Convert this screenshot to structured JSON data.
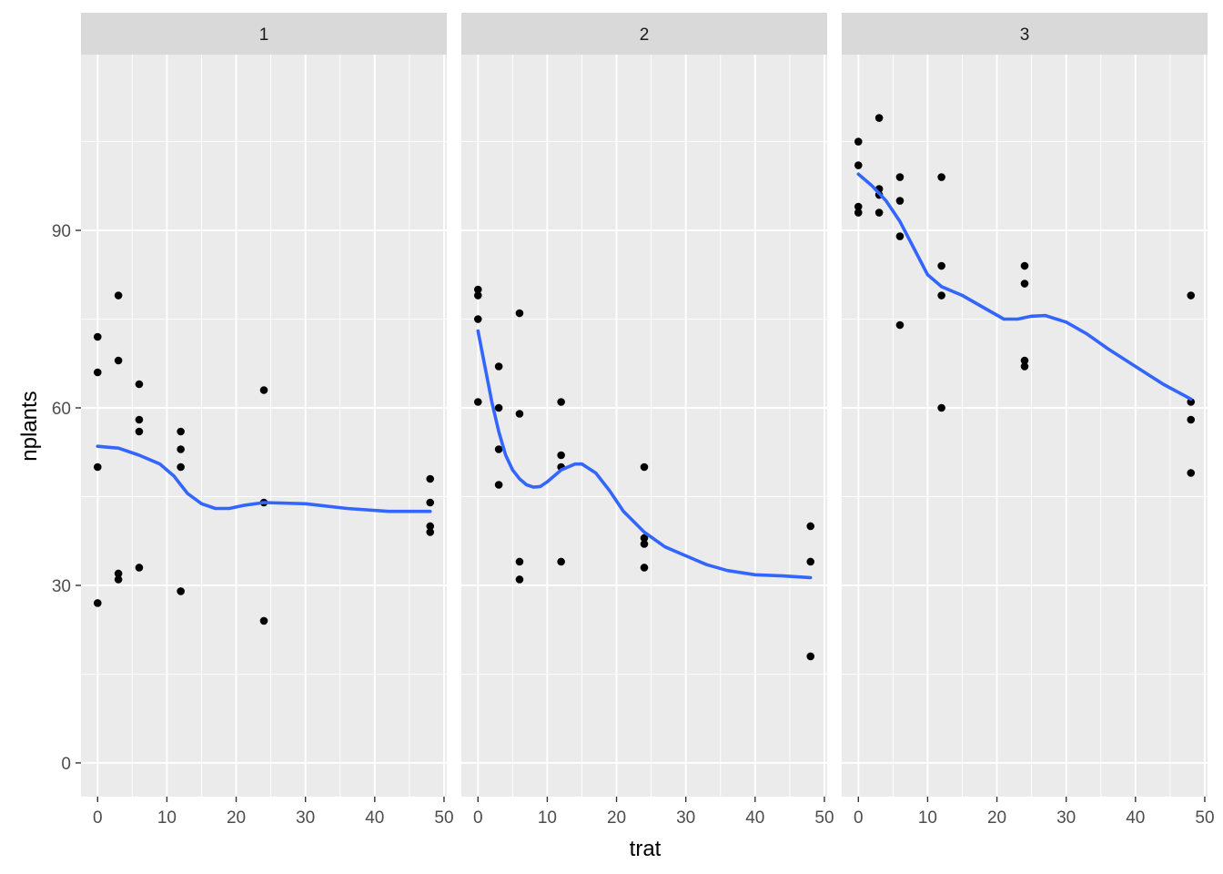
{
  "chart_data": {
    "type": "scatter",
    "facet_by": "panel",
    "xlabel": "trat",
    "ylabel": "nplants",
    "xlim": [
      -2.4,
      50.4
    ],
    "ylim": [
      -5.7,
      119.7
    ],
    "x_ticks": [
      0,
      10,
      20,
      30,
      40,
      50
    ],
    "y_ticks": [
      0,
      30,
      60,
      90
    ],
    "grid": true,
    "colors": {
      "panel_bg": "#ebebeb",
      "strip_bg": "#d9d9d9",
      "grid": "#ffffff",
      "point": "#000000",
      "smooth": "#3366ff"
    },
    "panels": [
      {
        "label": "1",
        "points": [
          [
            0,
            72
          ],
          [
            0,
            66
          ],
          [
            0,
            50
          ],
          [
            0,
            27
          ],
          [
            3,
            79
          ],
          [
            3,
            68
          ],
          [
            3,
            32
          ],
          [
            3,
            31
          ],
          [
            6,
            64
          ],
          [
            6,
            58
          ],
          [
            6,
            56
          ],
          [
            6,
            33
          ],
          [
            12,
            56
          ],
          [
            12,
            53
          ],
          [
            12,
            50
          ],
          [
            12,
            29
          ],
          [
            24,
            63
          ],
          [
            24,
            44
          ],
          [
            24,
            24
          ],
          [
            48,
            48
          ],
          [
            48,
            44
          ],
          [
            48,
            40
          ],
          [
            48,
            39
          ]
        ],
        "smooth": [
          [
            0,
            53.5
          ],
          [
            3,
            53.2
          ],
          [
            6,
            52
          ],
          [
            9,
            50.5
          ],
          [
            11,
            48.5
          ],
          [
            12,
            47
          ],
          [
            13,
            45.5
          ],
          [
            15,
            43.8
          ],
          [
            17,
            43
          ],
          [
            19,
            43
          ],
          [
            21,
            43.5
          ],
          [
            24,
            44
          ],
          [
            30,
            43.8
          ],
          [
            36,
            43
          ],
          [
            42,
            42.5
          ],
          [
            48,
            42.5
          ]
        ]
      },
      {
        "label": "2",
        "points": [
          [
            0,
            80
          ],
          [
            0,
            79
          ],
          [
            0,
            75
          ],
          [
            0,
            61
          ],
          [
            3,
            67
          ],
          [
            3,
            60
          ],
          [
            3,
            53
          ],
          [
            3,
            47
          ],
          [
            6,
            76
          ],
          [
            6,
            59
          ],
          [
            6,
            34
          ],
          [
            6,
            31
          ],
          [
            12,
            61
          ],
          [
            12,
            52
          ],
          [
            12,
            50
          ],
          [
            12,
            34
          ],
          [
            24,
            50
          ],
          [
            24,
            38
          ],
          [
            24,
            37
          ],
          [
            24,
            33
          ],
          [
            48,
            40
          ],
          [
            48,
            34
          ],
          [
            48,
            18
          ]
        ],
        "smooth": [
          [
            0,
            73
          ],
          [
            1,
            67
          ],
          [
            2,
            61
          ],
          [
            3,
            56
          ],
          [
            4,
            52
          ],
          [
            5,
            49.5
          ],
          [
            6,
            48
          ],
          [
            7,
            47
          ],
          [
            8,
            46.6
          ],
          [
            9,
            46.7
          ],
          [
            10,
            47.5
          ],
          [
            12,
            49.5
          ],
          [
            14,
            50.5
          ],
          [
            15,
            50.5
          ],
          [
            17,
            49
          ],
          [
            19,
            46
          ],
          [
            21,
            42.5
          ],
          [
            24,
            39
          ],
          [
            27,
            36.5
          ],
          [
            30,
            35
          ],
          [
            33,
            33.5
          ],
          [
            36,
            32.5
          ],
          [
            40,
            31.8
          ],
          [
            44,
            31.6
          ],
          [
            48,
            31.3
          ]
        ]
      },
      {
        "label": "3",
        "points": [
          [
            0,
            105
          ],
          [
            0,
            101
          ],
          [
            0,
            94
          ],
          [
            0,
            93
          ],
          [
            3,
            109
          ],
          [
            3,
            97
          ],
          [
            3,
            96
          ],
          [
            3,
            93
          ],
          [
            6,
            99
          ],
          [
            6,
            95
          ],
          [
            6,
            89
          ],
          [
            6,
            74
          ],
          [
            12,
            99
          ],
          [
            12,
            84
          ],
          [
            12,
            79
          ],
          [
            12,
            60
          ],
          [
            24,
            84
          ],
          [
            24,
            81
          ],
          [
            24,
            68
          ],
          [
            24,
            67
          ],
          [
            48,
            79
          ],
          [
            48,
            61
          ],
          [
            48,
            58
          ],
          [
            48,
            49
          ]
        ],
        "smooth": [
          [
            0,
            99.5
          ],
          [
            2,
            97.5
          ],
          [
            4,
            95
          ],
          [
            6,
            91.5
          ],
          [
            8,
            87
          ],
          [
            10,
            82.5
          ],
          [
            12,
            80.5
          ],
          [
            15,
            79
          ],
          [
            18,
            77
          ],
          [
            21,
            75
          ],
          [
            23,
            75
          ],
          [
            25,
            75.5
          ],
          [
            27,
            75.6
          ],
          [
            30,
            74.5
          ],
          [
            33,
            72.5
          ],
          [
            36,
            70
          ],
          [
            40,
            67
          ],
          [
            44,
            64
          ],
          [
            48,
            61.5
          ]
        ]
      }
    ]
  }
}
